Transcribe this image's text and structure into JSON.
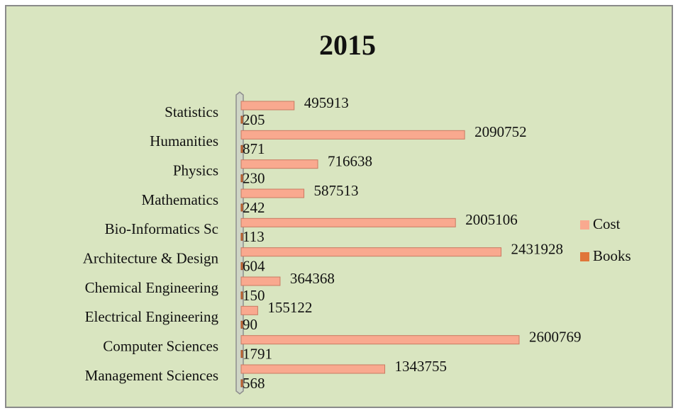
{
  "chart_data": {
    "type": "bar",
    "orientation": "horizontal",
    "title": "2015",
    "categories": [
      "Management Sciences",
      "Computer Sciences",
      "Electrical Engineering",
      "Chemical Engineering",
      "Architecture & Design",
      "Bio-Informatics Sc",
      "Mathematics",
      "Physics",
      "Humanities",
      "Statistics"
    ],
    "series": [
      {
        "name": "Cost",
        "color": "#f9a98f",
        "values": [
          1343755,
          2600769,
          155122,
          364368,
          2431928,
          2005106,
          587513,
          716638,
          2090752,
          495913
        ]
      },
      {
        "name": "Books",
        "color": "#e0763a",
        "values": [
          568,
          1791,
          90,
          150,
          604,
          113,
          242,
          230,
          871,
          205
        ]
      }
    ],
    "legend": "right"
  }
}
